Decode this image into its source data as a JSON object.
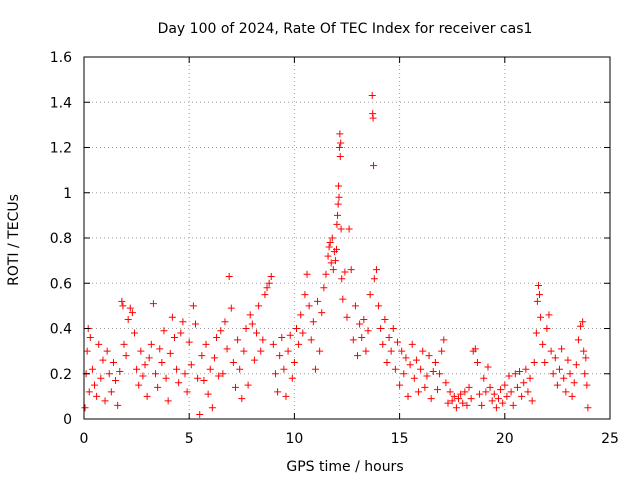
{
  "chart_data": {
    "type": "scatter",
    "title": "Day 100 of 2024, Rate Of TEC Index for receiver cas1",
    "xlabel": "GPS time / hours",
    "ylabel": "ROTI / TECUs",
    "xlim": [
      0,
      25
    ],
    "ylim": [
      0,
      1.6
    ],
    "xticks": [
      0,
      5,
      10,
      15,
      20,
      25
    ],
    "xtick_labels": [
      "0",
      "5",
      "10",
      "15",
      "20",
      "25"
    ],
    "yticks": [
      0,
      0.2,
      0.4,
      0.6,
      0.8,
      1.0,
      1.2,
      1.4,
      1.6
    ],
    "ytick_labels": [
      "0",
      "0.2",
      "0.4",
      "0.6",
      "0.8",
      "1",
      "1.2",
      "1.4",
      "1.6"
    ],
    "grid": true,
    "marker": "+",
    "color": "#ff0000",
    "series": [
      {
        "name": "cas1",
        "points": [
          [
            0.05,
            0.05
          ],
          [
            0.1,
            0.2
          ],
          [
            0.15,
            0.3
          ],
          [
            0.2,
            0.4
          ],
          [
            0.25,
            0.12
          ],
          [
            0.3,
            0.36
          ],
          [
            0.4,
            0.22
          ],
          [
            0.5,
            0.15
          ],
          [
            0.6,
            0.1
          ],
          [
            0.7,
            0.33
          ],
          [
            0.8,
            0.18
          ],
          [
            0.9,
            0.26
          ],
          [
            1.0,
            0.08
          ],
          [
            1.1,
            0.3
          ],
          [
            1.2,
            0.2
          ],
          [
            1.3,
            0.12
          ],
          [
            1.4,
            0.25
          ],
          [
            1.5,
            0.17
          ],
          [
            1.6,
            0.06
          ],
          [
            1.7,
            0.21
          ],
          [
            1.8,
            0.52
          ],
          [
            1.85,
            0.5
          ],
          [
            1.9,
            0.33
          ],
          [
            2.0,
            0.28
          ],
          [
            2.1,
            0.44
          ],
          [
            2.2,
            0.49
          ],
          [
            2.3,
            0.47
          ],
          [
            2.4,
            0.38
          ],
          [
            2.5,
            0.22
          ],
          [
            2.6,
            0.15
          ],
          [
            2.7,
            0.3
          ],
          [
            2.8,
            0.19
          ],
          [
            2.9,
            0.24
          ],
          [
            3.0,
            0.1
          ],
          [
            3.1,
            0.27
          ],
          [
            3.2,
            0.33
          ],
          [
            3.3,
            0.51
          ],
          [
            3.4,
            0.2
          ],
          [
            3.5,
            0.14
          ],
          [
            3.6,
            0.31
          ],
          [
            3.7,
            0.25
          ],
          [
            3.8,
            0.39
          ],
          [
            3.9,
            0.18
          ],
          [
            4.0,
            0.08
          ],
          [
            4.1,
            0.29
          ],
          [
            4.2,
            0.45
          ],
          [
            4.3,
            0.36
          ],
          [
            4.4,
            0.22
          ],
          [
            4.5,
            0.16
          ],
          [
            4.6,
            0.38
          ],
          [
            4.7,
            0.43
          ],
          [
            4.8,
            0.2
          ],
          [
            4.9,
            0.12
          ],
          [
            5.0,
            0.34
          ],
          [
            5.1,
            0.24
          ],
          [
            5.2,
            0.5
          ],
          [
            5.3,
            0.42
          ],
          [
            5.4,
            0.18
          ],
          [
            5.5,
            0.02
          ],
          [
            5.6,
            0.28
          ],
          [
            5.7,
            0.17
          ],
          [
            5.8,
            0.33
          ],
          [
            5.9,
            0.11
          ],
          [
            6.0,
            0.22
          ],
          [
            6.1,
            0.05
          ],
          [
            6.2,
            0.27
          ],
          [
            6.3,
            0.36
          ],
          [
            6.4,
            0.19
          ],
          [
            6.5,
            0.39
          ],
          [
            6.6,
            0.2
          ],
          [
            6.7,
            0.43
          ],
          [
            6.8,
            0.31
          ],
          [
            6.9,
            0.63
          ],
          [
            7.0,
            0.49
          ],
          [
            7.1,
            0.25
          ],
          [
            7.2,
            0.14
          ],
          [
            7.3,
            0.35
          ],
          [
            7.4,
            0.22
          ],
          [
            7.5,
            0.09
          ],
          [
            7.6,
            0.3
          ],
          [
            7.7,
            0.4
          ],
          [
            7.8,
            0.15
          ],
          [
            7.9,
            0.46
          ],
          [
            8.0,
            0.42
          ],
          [
            8.1,
            0.26
          ],
          [
            8.2,
            0.38
          ],
          [
            8.3,
            0.5
          ],
          [
            8.4,
            0.3
          ],
          [
            8.5,
            0.35
          ],
          [
            8.6,
            0.55
          ],
          [
            8.7,
            0.58
          ],
          [
            8.8,
            0.6
          ],
          [
            8.9,
            0.63
          ],
          [
            9.0,
            0.33
          ],
          [
            9.1,
            0.2
          ],
          [
            9.2,
            0.12
          ],
          [
            9.3,
            0.28
          ],
          [
            9.4,
            0.36
          ],
          [
            9.5,
            0.22
          ],
          [
            9.6,
            0.1
          ],
          [
            9.7,
            0.3
          ],
          [
            9.8,
            0.37
          ],
          [
            9.9,
            0.18
          ],
          [
            10.0,
            0.25
          ],
          [
            10.1,
            0.4
          ],
          [
            10.2,
            0.33
          ],
          [
            10.3,
            0.46
          ],
          [
            10.4,
            0.38
          ],
          [
            10.5,
            0.55
          ],
          [
            10.6,
            0.64
          ],
          [
            10.7,
            0.5
          ],
          [
            10.8,
            0.35
          ],
          [
            10.9,
            0.43
          ],
          [
            11.0,
            0.22
          ],
          [
            11.1,
            0.52
          ],
          [
            11.2,
            0.3
          ],
          [
            11.3,
            0.47
          ],
          [
            11.4,
            0.58
          ],
          [
            11.5,
            0.64
          ],
          [
            11.6,
            0.72
          ],
          [
            11.65,
            0.76
          ],
          [
            11.7,
            0.78
          ],
          [
            11.75,
            0.69
          ],
          [
            11.8,
            0.8
          ],
          [
            11.85,
            0.66
          ],
          [
            11.9,
            0.74
          ],
          [
            11.95,
            0.7
          ],
          [
            12.0,
            0.75
          ],
          [
            12.02,
            0.86
          ],
          [
            12.05,
            0.9
          ],
          [
            12.08,
            0.95
          ],
          [
            12.1,
            1.03
          ],
          [
            12.12,
            0.98
          ],
          [
            12.14,
            1.2
          ],
          [
            12.16,
            1.26
          ],
          [
            12.18,
            1.16
          ],
          [
            12.2,
            1.22
          ],
          [
            12.22,
            0.84
          ],
          [
            12.25,
            0.62
          ],
          [
            12.3,
            0.53
          ],
          [
            12.4,
            0.65
          ],
          [
            12.5,
            0.45
          ],
          [
            12.6,
            0.84
          ],
          [
            12.7,
            0.66
          ],
          [
            12.8,
            0.35
          ],
          [
            12.9,
            0.5
          ],
          [
            13.0,
            0.28
          ],
          [
            13.1,
            0.42
          ],
          [
            13.2,
            0.36
          ],
          [
            13.3,
            0.44
          ],
          [
            13.4,
            0.3
          ],
          [
            13.5,
            0.39
          ],
          [
            13.6,
            0.55
          ],
          [
            13.7,
            1.43
          ],
          [
            13.72,
            1.35
          ],
          [
            13.74,
            1.33
          ],
          [
            13.76,
            1.12
          ],
          [
            13.8,
            0.62
          ],
          [
            13.9,
            0.66
          ],
          [
            14.0,
            0.5
          ],
          [
            14.1,
            0.4
          ],
          [
            14.2,
            0.33
          ],
          [
            14.3,
            0.44
          ],
          [
            14.4,
            0.25
          ],
          [
            14.5,
            0.36
          ],
          [
            14.6,
            0.3
          ],
          [
            14.7,
            0.4
          ],
          [
            14.8,
            0.22
          ],
          [
            14.9,
            0.34
          ],
          [
            15.0,
            0.15
          ],
          [
            15.1,
            0.3
          ],
          [
            15.2,
            0.2
          ],
          [
            15.3,
            0.27
          ],
          [
            15.4,
            0.1
          ],
          [
            15.5,
            0.24
          ],
          [
            15.6,
            0.33
          ],
          [
            15.7,
            0.18
          ],
          [
            15.8,
            0.26
          ],
          [
            15.9,
            0.12
          ],
          [
            16.0,
            0.22
          ],
          [
            16.1,
            0.3
          ],
          [
            16.2,
            0.14
          ],
          [
            16.3,
            0.19
          ],
          [
            16.4,
            0.28
          ],
          [
            16.5,
            0.09
          ],
          [
            16.6,
            0.21
          ],
          [
            16.7,
            0.25
          ],
          [
            16.8,
            0.13
          ],
          [
            16.9,
            0.2
          ],
          [
            17.0,
            0.3
          ],
          [
            17.1,
            0.35
          ],
          [
            17.2,
            0.16
          ],
          [
            17.3,
            0.07
          ],
          [
            17.4,
            0.12
          ],
          [
            17.5,
            0.08
          ],
          [
            17.6,
            0.1
          ],
          [
            17.7,
            0.05
          ],
          [
            17.8,
            0.09
          ],
          [
            17.9,
            0.11
          ],
          [
            18.0,
            0.07
          ],
          [
            18.1,
            0.12
          ],
          [
            18.2,
            0.06
          ],
          [
            18.3,
            0.14
          ],
          [
            18.4,
            0.09
          ],
          [
            18.5,
            0.3
          ],
          [
            18.6,
            0.31
          ],
          [
            18.7,
            0.25
          ],
          [
            18.8,
            0.11
          ],
          [
            18.9,
            0.06
          ],
          [
            19.0,
            0.18
          ],
          [
            19.1,
            0.12
          ],
          [
            19.2,
            0.23
          ],
          [
            19.3,
            0.14
          ],
          [
            19.4,
            0.08
          ],
          [
            19.5,
            0.11
          ],
          [
            19.6,
            0.05
          ],
          [
            19.7,
            0.09
          ],
          [
            19.8,
            0.13
          ],
          [
            19.9,
            0.07
          ],
          [
            20.0,
            0.15
          ],
          [
            20.1,
            0.1
          ],
          [
            20.2,
            0.19
          ],
          [
            20.3,
            0.12
          ],
          [
            20.4,
            0.06
          ],
          [
            20.5,
            0.2
          ],
          [
            20.6,
            0.14
          ],
          [
            20.7,
            0.21
          ],
          [
            20.8,
            0.1
          ],
          [
            20.9,
            0.16
          ],
          [
            21.0,
            0.22
          ],
          [
            21.1,
            0.12
          ],
          [
            21.2,
            0.18
          ],
          [
            21.3,
            0.08
          ],
          [
            21.4,
            0.25
          ],
          [
            21.5,
            0.38
          ],
          [
            21.55,
            0.52
          ],
          [
            21.6,
            0.59
          ],
          [
            21.65,
            0.55
          ],
          [
            21.7,
            0.45
          ],
          [
            21.8,
            0.33
          ],
          [
            21.9,
            0.25
          ],
          [
            22.0,
            0.4
          ],
          [
            22.1,
            0.46
          ],
          [
            22.2,
            0.3
          ],
          [
            22.3,
            0.2
          ],
          [
            22.4,
            0.27
          ],
          [
            22.5,
            0.15
          ],
          [
            22.6,
            0.22
          ],
          [
            22.7,
            0.31
          ],
          [
            22.8,
            0.18
          ],
          [
            22.9,
            0.12
          ],
          [
            23.0,
            0.26
          ],
          [
            23.1,
            0.2
          ],
          [
            23.2,
            0.1
          ],
          [
            23.3,
            0.16
          ],
          [
            23.4,
            0.24
          ],
          [
            23.5,
            0.35
          ],
          [
            23.6,
            0.41
          ],
          [
            23.7,
            0.43
          ],
          [
            23.75,
            0.3
          ],
          [
            23.8,
            0.2
          ],
          [
            23.85,
            0.27
          ],
          [
            23.9,
            0.15
          ],
          [
            23.95,
            0.05
          ]
        ]
      }
    ]
  }
}
